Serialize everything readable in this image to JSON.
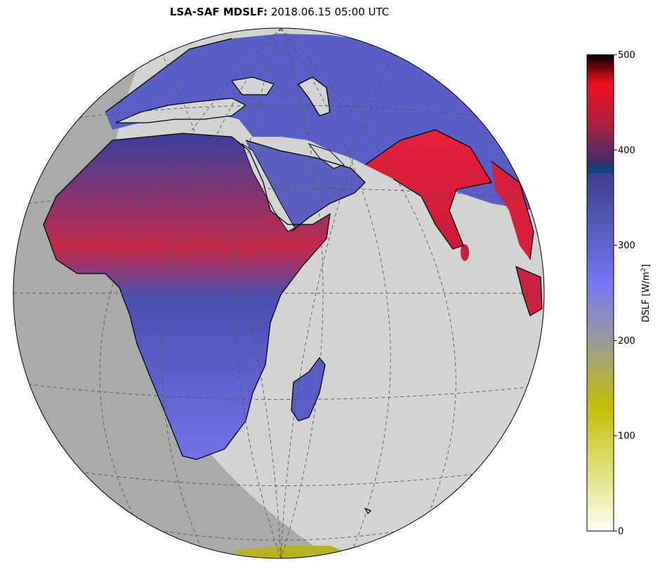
{
  "title": {
    "product": "LSA-SAF MDSLF",
    "separator": ":",
    "datetime": "2018.06.15 05:00 UTC"
  },
  "colorbar": {
    "label_main": "DSLF [W/m",
    "label_sup": "2",
    "label_close": "]",
    "ticks": [
      "0",
      "100",
      "200",
      "300",
      "400",
      "500"
    ],
    "tick_values": [
      0,
      100,
      200,
      300,
      400,
      500
    ],
    "range": [
      0,
      500
    ],
    "stops": [
      {
        "v": 0,
        "color": "#fdfdf4"
      },
      {
        "v": 80,
        "color": "#d9d85f"
      },
      {
        "v": 130,
        "color": "#c4bf05"
      },
      {
        "v": 200,
        "color": "#9a9a9a"
      },
      {
        "v": 260,
        "color": "#7777f5"
      },
      {
        "v": 330,
        "color": "#5156b0"
      },
      {
        "v": 375,
        "color": "#3a3f8e"
      },
      {
        "v": 376,
        "color": "#173f7c"
      },
      {
        "v": 384,
        "color": "#173f7c"
      },
      {
        "v": 385,
        "color": "#3a2f6e"
      },
      {
        "v": 430,
        "color": "#b01e3e"
      },
      {
        "v": 470,
        "color": "#f20d1e"
      },
      {
        "v": 500,
        "color": "#050000"
      }
    ]
  },
  "colors": {
    "ocean_day": "#d3d3d3",
    "ocean_night": "#aaaaaa",
    "grid": "#555555",
    "coast": "#000000",
    "land_blue": "#6464d6",
    "land_red": "#d2203c",
    "land_darkblue": "#2d3d8a"
  }
}
